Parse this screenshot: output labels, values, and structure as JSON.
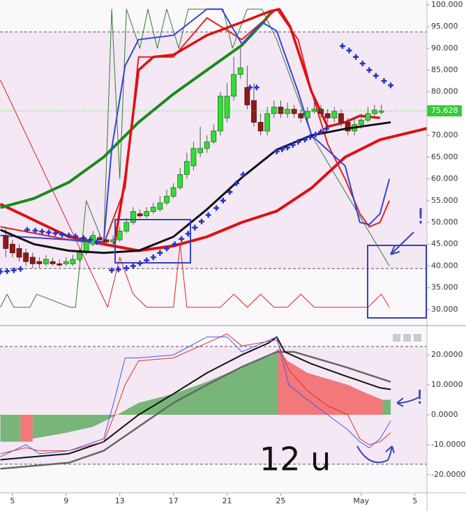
{
  "chart_data": [
    {
      "type": "candlestick",
      "xlim": [
        4.07,
        35.9
      ],
      "ylim": [
        28.7,
        101.1
      ],
      "yticks": [
        {
          "value": 30,
          "label": "30.000"
        },
        {
          "value": 35,
          "label": "35.000"
        },
        {
          "value": 40,
          "label": "40.000"
        },
        {
          "value": 45,
          "label": "45.000"
        },
        {
          "value": 50,
          "label": "50.000"
        },
        {
          "value": 55,
          "label": "55.000"
        },
        {
          "value": 60,
          "label": "60.000"
        },
        {
          "value": 65,
          "label": "65.000"
        },
        {
          "value": 70,
          "label": "70.000"
        },
        {
          "value": 75,
          "label": "75.000"
        },
        {
          "value": 80,
          "label": "80.000"
        },
        {
          "value": 85,
          "label": "85.000"
        },
        {
          "value": 90,
          "label": "90.000"
        },
        {
          "value": 95,
          "label": "95.000"
        },
        {
          "value": 100,
          "label": "100.000"
        }
      ],
      "levels": [
        93.75,
        39.4
      ],
      "last_value": 75.628,
      "up_color": "#33dd33",
      "down_color": "#8b1a1a",
      "candles": {
        "x": [
          4.5,
          5,
          5.5,
          6,
          6.5,
          7,
          7.5,
          8,
          8.5,
          9,
          9.5,
          10,
          10.5,
          11,
          11.5,
          12,
          12.5,
          13,
          13.5,
          14,
          14.5,
          15,
          15.5,
          16,
          16.5,
          17,
          17.5,
          18,
          18.5,
          19,
          19.5,
          20,
          20.5,
          21,
          21.5,
          22,
          22.5,
          23,
          23.5,
          24,
          24.5,
          25,
          25.5,
          26,
          26.5,
          27,
          27.5,
          28,
          28.5,
          29,
          29.5,
          30,
          30.5,
          31,
          31.5,
          32,
          32.5
        ],
        "open": [
          47,
          45,
          44,
          43,
          42,
          41,
          40.5,
          41,
          40.5,
          40.5,
          40.5,
          41.5,
          43,
          45,
          46.5,
          46,
          45.5,
          46,
          48,
          50,
          52,
          51.5,
          52.5,
          53,
          54.5,
          56,
          58,
          61,
          63,
          66,
          67,
          68.5,
          71,
          74,
          79,
          84,
          81,
          78,
          73,
          71,
          75,
          76.5,
          75,
          76,
          75,
          74,
          75.5,
          76,
          75,
          74,
          75,
          73,
          71,
          72.5,
          73.5,
          75,
          75.3
        ],
        "close": [
          44,
          43,
          42,
          41,
          40.5,
          40.5,
          41.5,
          40.5,
          40.2,
          41,
          41.5,
          43,
          45.5,
          47,
          46,
          45.5,
          46,
          48,
          50,
          52.5,
          51.5,
          52.5,
          53.5,
          54.5,
          56,
          58,
          61,
          64,
          67,
          67,
          68.5,
          71,
          79,
          79,
          84,
          85.5,
          77,
          73,
          71,
          75,
          76.5,
          75,
          76,
          75,
          74,
          75.5,
          76,
          75,
          74,
          75.5,
          73,
          71,
          72.5,
          73.5,
          75,
          75.8,
          75.628
        ],
        "high": [
          49,
          46,
          45,
          44,
          43,
          42,
          42.5,
          41.8,
          41.5,
          42,
          42.5,
          44,
          46.5,
          48,
          47.5,
          47,
          47,
          49,
          51,
          53.5,
          53,
          53.5,
          54.5,
          56,
          57.5,
          59,
          62.5,
          66,
          68.5,
          72,
          70,
          72.5,
          80,
          82,
          88,
          90,
          86,
          82,
          75,
          76.5,
          78,
          78,
          77.5,
          77,
          76,
          76.5,
          78,
          77,
          76,
          76.5,
          76,
          74,
          74,
          75,
          76.5,
          77,
          77
        ],
        "low": [
          42,
          42,
          41,
          40,
          39.5,
          39.5,
          40,
          40,
          39.8,
          40,
          40,
          41,
          42.5,
          44.5,
          45.5,
          45,
          45,
          45.5,
          47.5,
          49.5,
          51,
          51,
          52,
          52.5,
          54,
          55.5,
          57.5,
          60,
          62,
          65,
          66,
          68,
          70,
          73,
          78,
          83,
          76,
          72,
          70,
          70,
          74,
          74,
          74,
          74,
          73,
          73,
          75,
          74,
          73,
          73,
          72,
          70,
          70,
          71.5,
          73,
          74.5,
          74.8
        ]
      },
      "series": [
        {
          "kind": "line",
          "color": "#2e7d2e",
          "width": 1,
          "x": [
            4.1,
            4.6,
            5.1,
            6.3,
            6.8,
            9.3,
            9.7,
            10.5,
            11.8,
            12.4,
            13,
            13.5,
            14.5,
            15.1,
            15.8,
            16.5,
            17.4,
            18.1,
            19.4,
            20.7,
            21.4,
            22.5,
            23.1,
            23.6,
            24.7,
            27.3,
            33.1
          ],
          "values": [
            30.5,
            33.5,
            30.5,
            30.5,
            33.5,
            30.5,
            30.5,
            55,
            45,
            99,
            60,
            99,
            90,
            99,
            90,
            99,
            90,
            99,
            99,
            99,
            90,
            99,
            99,
            99,
            92,
            70,
            40
          ]
        },
        {
          "kind": "line",
          "color": "#dd2222",
          "width": 1,
          "x": [
            4.1,
            12.1,
            13,
            14,
            15,
            16,
            17,
            17.5,
            18,
            19,
            20.5,
            21.5,
            22.5,
            23.5,
            24.5,
            25.5,
            26.5,
            27.5,
            28.5,
            29.5,
            30.5,
            31.5,
            32.5,
            33.1
          ],
          "values": [
            82.7,
            30.5,
            42,
            33.5,
            30.5,
            30.5,
            30.5,
            45,
            30.5,
            30.5,
            30.5,
            33.5,
            30.5,
            33.5,
            30.5,
            30.5,
            33.5,
            30.5,
            30.5,
            30.5,
            30.5,
            30.5,
            33.5,
            30.5
          ]
        },
        {
          "kind": "line",
          "color": "#dd1111",
          "width": 4,
          "x": [
            4.1,
            9.2,
            11.8,
            14.4,
            17,
            19.5,
            22.1,
            24.7,
            27.3,
            29.8,
            32.4,
            35.9
          ],
          "values": [
            54.2,
            46.7,
            45,
            43.5,
            44.6,
            46.7,
            50,
            52.6,
            57.9,
            65,
            69,
            71.6
          ]
        },
        {
          "kind": "line",
          "color": "#1a8a1a",
          "width": 4,
          "x": [
            4.1,
            6.6,
            9.2,
            11.8,
            14.4,
            17,
            19.5,
            22.1,
            23.7,
            24.4
          ],
          "values": [
            53.4,
            55.5,
            59.2,
            65,
            73,
            79.5,
            85,
            90.7,
            96,
            98.7
          ]
        },
        {
          "kind": "line",
          "color": "#e32222",
          "width": 2,
          "x": [
            4.1,
            9.2,
            11.8,
            13.4,
            14.4,
            17,
            19.5,
            22.1,
            24.7,
            26.3,
            27.3,
            28.5,
            29.8,
            30.9,
            31.6,
            32.4,
            33.1
          ],
          "values": [
            49,
            46,
            45,
            58,
            88,
            88,
            97,
            92,
            99,
            92,
            80,
            68,
            60,
            52,
            49,
            50,
            55
          ]
        },
        {
          "kind": "line",
          "color": "#3344dd",
          "width": 2,
          "x": [
            4.1,
            9.2,
            11.8,
            12.4,
            13.4,
            14.4,
            17,
            19.5,
            20.6,
            22.1,
            23.6,
            24.7,
            26.3,
            27.3,
            29.8,
            30.9,
            31.6,
            32.4,
            33.1
          ],
          "values": [
            47,
            46,
            45.5,
            67,
            86,
            92,
            93,
            99,
            99,
            91,
            96,
            94,
            80,
            70,
            63,
            50,
            49.5,
            52,
            60
          ]
        },
        {
          "kind": "line",
          "color": "#dd1111",
          "width": 3.5,
          "x": [
            12.6,
            13.4,
            14.4,
            15.5,
            17,
            19.5,
            22.1,
            24.2,
            24.9,
            25.7,
            27.3,
            28.5,
            29.8,
            30.9,
            32.4
          ],
          "values": [
            45,
            60,
            85,
            88,
            88.5,
            93,
            96,
            98.5,
            99,
            95,
            80,
            72,
            73,
            74.5,
            74
          ]
        },
        {
          "kind": "line",
          "color": "#111111",
          "width": 3,
          "x": [
            4.1,
            6.6,
            9.2,
            11.8,
            14.4,
            17,
            19.5,
            22.1,
            24.7,
            27.3,
            29.8,
            33.2
          ],
          "values": [
            48.3,
            45,
            43.5,
            43,
            43.5,
            46.7,
            53,
            60.3,
            66.7,
            70,
            71.5,
            73
          ]
        },
        {
          "kind": "scatter",
          "color": "#2233cc",
          "x": [
            4.1,
            4.6,
            5.1,
            5.6,
            6.1,
            6.7,
            7.2,
            7.7,
            8.2,
            8.7,
            9.2,
            9.7,
            10.3,
            10.8,
            11.3,
            12.4,
            12.9,
            13.5,
            14,
            14.5,
            15,
            15.5,
            16,
            16.5,
            17.1,
            17.6,
            18.1,
            18.6,
            19.1,
            19.6,
            20.2,
            20.7,
            21.2,
            21.7,
            22.2,
            22.7,
            23.2,
            24.7,
            25.1,
            25.5,
            25.9,
            26.3,
            26.8,
            27.2,
            27.6,
            28,
            28.4,
            29.6,
            30.1,
            30.6,
            31.1,
            31.6,
            32.1,
            32.7,
            33.2
          ],
          "values": [
            38.7,
            38.8,
            39,
            39.3,
            48.3,
            48.1,
            47.9,
            47.7,
            47.5,
            47.2,
            47,
            46.8,
            46.4,
            46,
            45.5,
            39,
            39.2,
            39.5,
            40,
            40.6,
            41.3,
            42,
            43,
            44,
            45,
            46.2,
            47.4,
            48.8,
            50.2,
            51.7,
            53.3,
            55,
            57,
            59,
            61,
            81,
            81,
            66.3,
            66.8,
            67.2,
            67.8,
            68.5,
            69,
            69.6,
            70.2,
            70.8,
            71.5,
            90.5,
            89.5,
            88,
            86.5,
            85,
            83.7,
            82.5,
            81.5
          ]
        }
      ]
    },
    {
      "type": "line",
      "xlim": [
        4.07,
        35.9
      ],
      "ylim": [
        -25.6,
        28.4
      ],
      "yticks": [
        {
          "value": -20,
          "label": "-20.0000"
        },
        {
          "value": -10,
          "label": "-10.0000"
        },
        {
          "value": 0,
          "label": "0.0000"
        },
        {
          "value": 10,
          "label": "10.0000"
        },
        {
          "value": 20,
          "label": "20.0000"
        }
      ],
      "xticks": [
        5,
        9,
        13,
        17,
        21,
        25,
        {
          "value": 31,
          "label": "May"
        },
        {
          "value": 35,
          "label": "5"
        }
      ],
      "levels": [
        22.8,
        -16.5
      ],
      "annotations": [
        "12 u",
        "!",
        "!"
      ],
      "series": [
        {
          "kind": "area",
          "color": "#6aaf6a",
          "x": [
            4.1,
            5.6,
            6,
            6.5,
            9,
            11,
            12.8,
            14.4,
            17,
            19.5,
            22.1,
            24.4,
            24.8,
            28,
            32.6,
            33.2
          ],
          "values": [
            -9,
            -9,
            null,
            -8,
            -6,
            -4,
            0,
            4,
            7,
            11,
            16,
            20,
            22,
            null,
            5,
            5
          ]
        },
        {
          "kind": "area",
          "color": "#f26b6b",
          "x": [
            5.6,
            6.5,
            7,
            24.8,
            25.5,
            27,
            28.5,
            30,
            31.5,
            32.6
          ],
          "values": [
            -9,
            -9,
            null,
            22,
            18,
            14,
            12,
            10,
            7,
            5
          ]
        },
        {
          "kind": "line",
          "color": "#666666",
          "width": 2.5,
          "x": [
            4.1,
            9.2,
            11.8,
            14.4,
            17,
            19.5,
            22.1,
            24.7,
            26,
            29.8,
            33.2
          ],
          "values": [
            -18,
            -16,
            -12,
            -4,
            4,
            10,
            16,
            21,
            21,
            16,
            11
          ]
        },
        {
          "kind": "line",
          "color": "#111111",
          "width": 2,
          "x": [
            4.1,
            6.6,
            9.2,
            11.8,
            14.4,
            17,
            19.5,
            22.1,
            24.1,
            24.7,
            25.3,
            27.3,
            29.8,
            32.4,
            33.2
          ],
          "values": [
            -15,
            -14,
            -13,
            -9,
            0,
            7,
            14,
            20,
            24,
            26,
            21,
            17,
            13,
            9,
            8.5
          ]
        },
        {
          "kind": "line",
          "color": "#e03030",
          "width": 1,
          "x": [
            4.1,
            6,
            7,
            9.2,
            11.8,
            12.6,
            13.4,
            14.4,
            17,
            19.5,
            21,
            22.1,
            24.7,
            25.6,
            27,
            28.5,
            30,
            30.9,
            31.6,
            32.4,
            33.2
          ],
          "values": [
            -13,
            -11,
            -12,
            -12,
            -9,
            0,
            10,
            18,
            19,
            24,
            27,
            23,
            25,
            15,
            8,
            3,
            0,
            -8,
            -10,
            -9,
            -6
          ]
        },
        {
          "kind": "line",
          "color": "#4455ee",
          "width": 1,
          "x": [
            4.1,
            6,
            7,
            9.2,
            11.8,
            12.6,
            13.4,
            14.4,
            17,
            19.5,
            21,
            22.1,
            24.7,
            25.6,
            27,
            28.5,
            30,
            30.9,
            31.6,
            32.4,
            33.2
          ],
          "values": [
            -14,
            -10,
            -13,
            -12,
            -8,
            5,
            19,
            19,
            20,
            26,
            26,
            21,
            26,
            10,
            5,
            0,
            -5,
            -9,
            -11,
            -8,
            -2
          ]
        }
      ]
    }
  ]
}
